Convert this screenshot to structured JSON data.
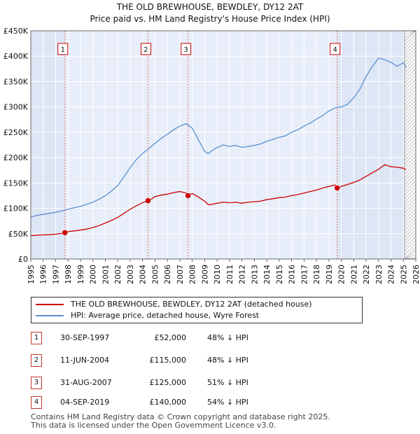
{
  "header": {
    "title_line1": "THE OLD BREWHOUSE, BEWDLEY, DY12 2AT",
    "title_line2": "Price paid vs. HM Land Registry's House Price Index (HPI)"
  },
  "chart_data": {
    "type": "line",
    "title": "THE OLD BREWHOUSE, BEWDLEY, DY12 2AT",
    "subtitle": "Price paid vs. HM Land Registry's House Price Index (HPI)",
    "xlabel": "",
    "ylabel": "",
    "xlim": [
      1995,
      2026
    ],
    "ylim": [
      0,
      450000
    ],
    "x_ticks": [
      "1995",
      "1996",
      "1997",
      "1998",
      "1999",
      "2000",
      "2001",
      "2002",
      "2003",
      "2004",
      "2005",
      "2006",
      "2007",
      "2008",
      "2009",
      "2010",
      "2011",
      "2012",
      "2013",
      "2014",
      "2015",
      "2016",
      "2017",
      "2018",
      "2019",
      "2020",
      "2021",
      "2022",
      "2023",
      "2024",
      "2025",
      "2026"
    ],
    "y_ticks": [
      {
        "value": 0,
        "label": "£0"
      },
      {
        "value": 50000,
        "label": "£50K"
      },
      {
        "value": 100000,
        "label": "£100K"
      },
      {
        "value": 150000,
        "label": "£150K"
      },
      {
        "value": 200000,
        "label": "£200K"
      },
      {
        "value": 250000,
        "label": "£250K"
      },
      {
        "value": 300000,
        "label": "£300K"
      },
      {
        "value": 350000,
        "label": "£350K"
      },
      {
        "value": 400000,
        "label": "£400K"
      },
      {
        "value": 450000,
        "label": "£450K"
      }
    ],
    "grid": true,
    "future_hatch_from": 2025.1,
    "colors": {
      "property": "#cc0000",
      "hpi": "#5b8fd0",
      "shade": "#dde6f5",
      "grid": "#c8d4ea",
      "vline": "#e07070",
      "hatch": "#999999"
    },
    "series": [
      {
        "name": "THE OLD BREWHOUSE, BEWDLEY, DY12 2AT (detached house)",
        "color": "#cc0000",
        "x": [
          1995.0,
          1995.5,
          1996.0,
          1996.5,
          1997.0,
          1997.5,
          1997.75,
          1998.0,
          1998.5,
          1999.0,
          1999.5,
          2000.0,
          2000.5,
          2001.0,
          2001.5,
          2002.0,
          2002.5,
          2003.0,
          2003.5,
          2004.0,
          2004.44,
          2004.7,
          2005.0,
          2005.5,
          2006.0,
          2006.5,
          2007.0,
          2007.5,
          2007.66,
          2008.0,
          2008.5,
          2009.0,
          2009.3,
          2009.6,
          2010.0,
          2010.5,
          2011.0,
          2011.5,
          2012.0,
          2012.5,
          2013.0,
          2013.5,
          2014.0,
          2014.5,
          2015.0,
          2015.5,
          2016.0,
          2016.5,
          2017.0,
          2017.5,
          2018.0,
          2018.5,
          2019.0,
          2019.5,
          2019.67,
          2020.0,
          2020.5,
          2021.0,
          2021.5,
          2022.0,
          2022.5,
          2023.0,
          2023.5,
          2024.0,
          2024.5,
          2025.0,
          2025.2
        ],
        "y": [
          46000,
          47000,
          47500,
          48000,
          49000,
          50500,
          52000,
          54000,
          55500,
          57000,
          59000,
          62000,
          66000,
          71000,
          76000,
          82000,
          90000,
          98000,
          105000,
          111000,
          115000,
          118000,
          123000,
          126000,
          128000,
          131000,
          133000,
          130000,
          125000,
          129000,
          122000,
          114000,
          107000,
          108000,
          110000,
          112000,
          111000,
          112000,
          110000,
          112000,
          113000,
          114000,
          117000,
          119000,
          121000,
          122000,
          125000,
          127000,
          130000,
          133000,
          136000,
          140000,
          143000,
          146000,
          140000,
          143000,
          147000,
          151000,
          156000,
          163000,
          170000,
          177000,
          186000,
          182000,
          181000,
          179000,
          176000
        ]
      },
      {
        "name": "HPI: Average price, detached house, Wyre Forest",
        "color": "#5b8fd0",
        "x": [
          1995.0,
          1995.5,
          1996.0,
          1996.5,
          1997.0,
          1997.5,
          1998.0,
          1998.5,
          1999.0,
          1999.5,
          2000.0,
          2000.5,
          2001.0,
          2001.5,
          2002.0,
          2002.5,
          2003.0,
          2003.5,
          2004.0,
          2004.5,
          2005.0,
          2005.5,
          2006.0,
          2006.5,
          2007.0,
          2007.5,
          2008.0,
          2008.5,
          2009.0,
          2009.3,
          2009.6,
          2010.0,
          2010.5,
          2011.0,
          2011.5,
          2012.0,
          2012.5,
          2013.0,
          2013.5,
          2014.0,
          2014.5,
          2015.0,
          2015.5,
          2016.0,
          2016.5,
          2017.0,
          2017.5,
          2018.0,
          2018.5,
          2019.0,
          2019.5,
          2020.0,
          2020.5,
          2021.0,
          2021.5,
          2022.0,
          2022.5,
          2023.0,
          2023.5,
          2024.0,
          2024.5,
          2025.0,
          2025.2
        ],
        "y": [
          83000,
          86000,
          88000,
          90000,
          92000,
          95000,
          98000,
          101000,
          104000,
          108000,
          112000,
          118000,
          125000,
          134000,
          145000,
          162000,
          180000,
          196000,
          208000,
          218000,
          228000,
          238000,
          246000,
          255000,
          262000,
          267000,
          258000,
          235000,
          212000,
          208000,
          214000,
          220000,
          225000,
          222000,
          224000,
          220000,
          222000,
          224000,
          227000,
          232000,
          236000,
          240000,
          243000,
          250000,
          255000,
          262000,
          268000,
          276000,
          283000,
          292000,
          298000,
          300000,
          305000,
          318000,
          335000,
          360000,
          380000,
          396000,
          393000,
          388000,
          380000,
          387000,
          378000
        ]
      }
    ],
    "sales": [
      {
        "n": "1",
        "x": 1997.75,
        "y": 52000
      },
      {
        "n": "2",
        "x": 2004.44,
        "y": 115000
      },
      {
        "n": "3",
        "x": 2007.66,
        "y": 125000
      },
      {
        "n": "4",
        "x": 2019.67,
        "y": 140000
      }
    ]
  },
  "legend": {
    "property": "THE OLD BREWHOUSE, BEWDLEY, DY12 2AT (detached house)",
    "hpi": "HPI: Average price, detached house, Wyre Forest"
  },
  "sales_table": [
    {
      "n": "1",
      "date": "30-SEP-1997",
      "price": "£52,000",
      "pct": "48% ↓ HPI"
    },
    {
      "n": "2",
      "date": "11-JUN-2004",
      "price": "£115,000",
      "pct": "48% ↓ HPI"
    },
    {
      "n": "3",
      "date": "31-AUG-2007",
      "price": "£125,000",
      "pct": "51% ↓ HPI"
    },
    {
      "n": "4",
      "date": "04-SEP-2019",
      "price": "£140,000",
      "pct": "54% ↓ HPI"
    }
  ],
  "footer": {
    "line1": "Contains HM Land Registry data © Crown copyright and database right 2025.",
    "line2": "This data is licensed under the Open Government Licence v3.0."
  }
}
